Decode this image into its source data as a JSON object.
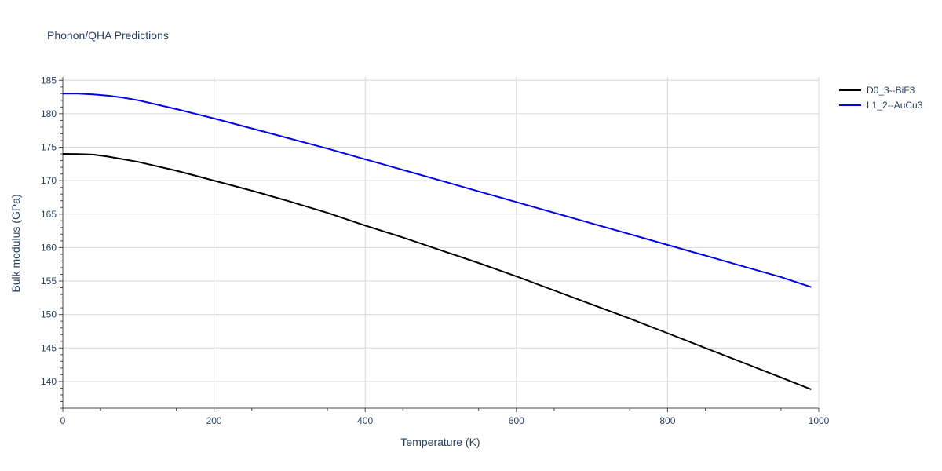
{
  "chart_data": {
    "type": "line",
    "title": "Phonon/QHA Predictions",
    "xlabel": "Temperature (K)",
    "ylabel": "Bulk modulus (GPa)",
    "xlim": [
      0,
      1000
    ],
    "ylim": [
      136,
      185.5
    ],
    "x_ticks": [
      0,
      200,
      400,
      600,
      800,
      1000
    ],
    "y_ticks": [
      140,
      145,
      150,
      155,
      160,
      165,
      170,
      175,
      180,
      185
    ],
    "grid": true,
    "legend_position": "top-right",
    "series": [
      {
        "name": "D0_3--BiF3",
        "color": "#000000",
        "x": [
          0,
          20,
          40,
          60,
          80,
          100,
          150,
          200,
          250,
          300,
          350,
          400,
          450,
          500,
          550,
          600,
          650,
          700,
          750,
          800,
          850,
          900,
          950,
          990
        ],
        "y": [
          174.0,
          173.98,
          173.9,
          173.6,
          173.2,
          172.8,
          171.5,
          170.0,
          168.5,
          166.9,
          165.2,
          163.3,
          161.5,
          159.6,
          157.7,
          155.7,
          153.6,
          151.5,
          149.4,
          147.2,
          145.0,
          142.8,
          140.6,
          138.8
        ]
      },
      {
        "name": "L1_2--AuCu3",
        "color": "#0000ee",
        "x": [
          0,
          20,
          40,
          60,
          80,
          100,
          150,
          200,
          250,
          300,
          350,
          400,
          450,
          500,
          550,
          600,
          650,
          700,
          750,
          800,
          850,
          900,
          950,
          990
        ],
        "y": [
          183.0,
          183.0,
          182.9,
          182.7,
          182.4,
          182.0,
          180.7,
          179.3,
          177.8,
          176.3,
          174.8,
          173.2,
          171.6,
          170.0,
          168.4,
          166.8,
          165.2,
          163.6,
          162.0,
          160.4,
          158.8,
          157.2,
          155.6,
          154.1
        ]
      }
    ]
  }
}
